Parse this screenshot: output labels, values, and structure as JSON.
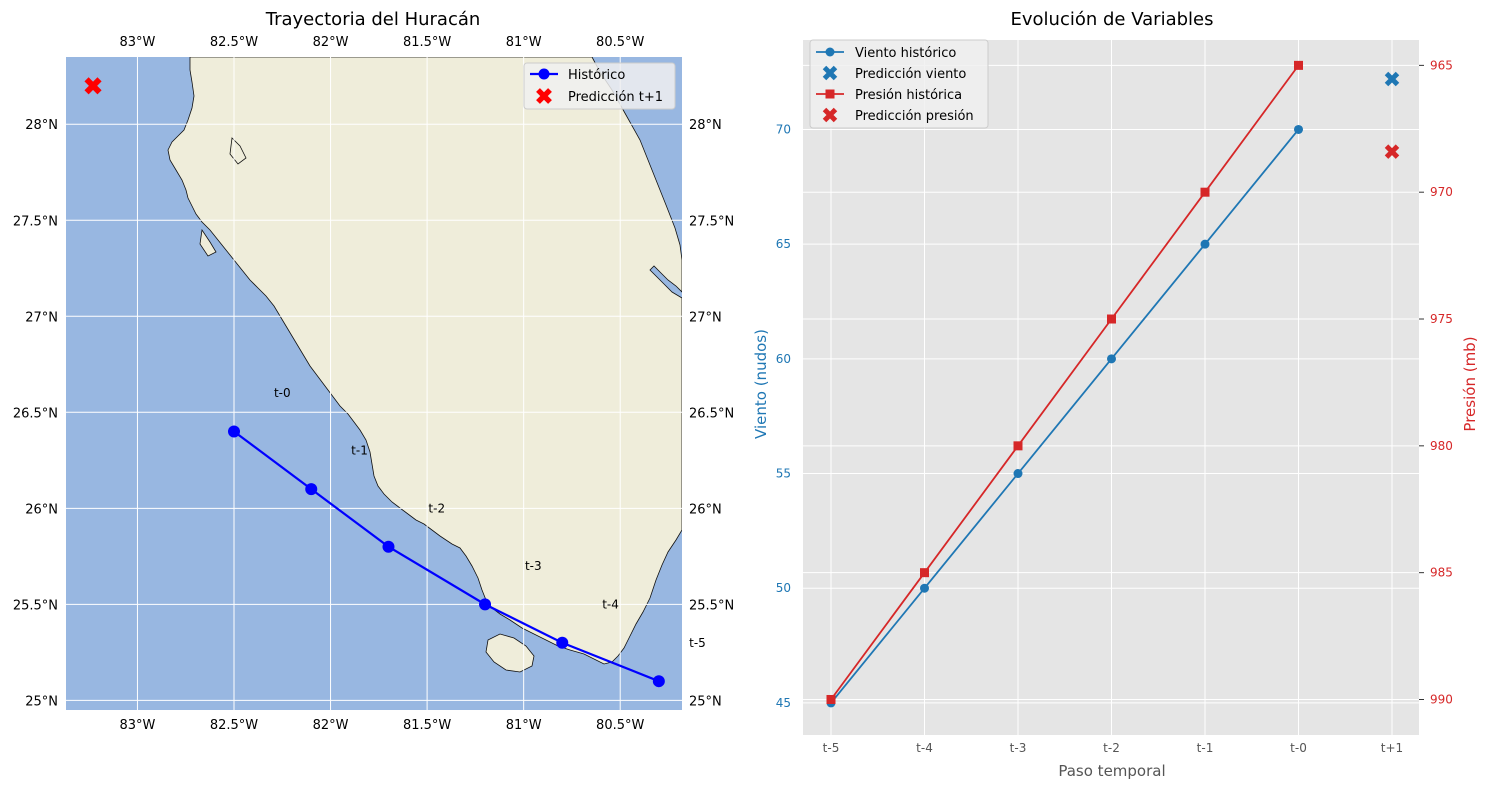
{
  "chart_data": [
    {
      "type": "scatter",
      "title": "Trayectoria del Huracán",
      "x_ticks": [
        "83°W",
        "82.5°W",
        "82°W",
        "81.5°W",
        "81°W",
        "80.5°W"
      ],
      "x_tick_values": [
        -83,
        -82.5,
        -82,
        -81.5,
        -81,
        -80.5
      ],
      "y_ticks": [
        "25°N",
        "25.5°N",
        "26°N",
        "26.5°N",
        "27°N",
        "27.5°N",
        "28°N"
      ],
      "y_tick_values": [
        25,
        25.5,
        26,
        26.5,
        27,
        27.5,
        28
      ],
      "xlim": [
        -83.37,
        -80.18
      ],
      "ylim": [
        24.95,
        28.35
      ],
      "colors": {
        "land": "#efedda",
        "ocean": "#98b7e1",
        "historic": "#0000ff",
        "prediction": "#ff0000"
      },
      "series": [
        {
          "name": "Histórico",
          "lon": [
            -82.5,
            -82.1,
            -81.7,
            -81.2,
            -80.8,
            -80.3
          ],
          "lat": [
            26.4,
            26.1,
            25.8,
            25.5,
            25.3,
            25.1
          ]
        },
        {
          "name": "Predicción t+1",
          "lon": [
            -83.23
          ],
          "lat": [
            28.2
          ]
        }
      ],
      "annotations": [
        {
          "text": "t-0",
          "lon": -82.25,
          "lat": 26.6
        },
        {
          "text": "t-1",
          "lon": -81.85,
          "lat": 26.3
        },
        {
          "text": "t-2",
          "lon": -81.45,
          "lat": 26.0
        },
        {
          "text": "t-3",
          "lon": -80.95,
          "lat": 25.7
        },
        {
          "text": "t-4",
          "lon": -80.55,
          "lat": 25.5
        },
        {
          "text": "t-5",
          "lon": -80.1,
          "lat": 25.3
        }
      ],
      "legend": "top-right"
    },
    {
      "type": "line",
      "title": "Evolución de Variables",
      "xlabel": "Paso temporal",
      "ylabel": "Viento (nudos)",
      "ylabel_right": "Presión (mb)",
      "categories": [
        "t-5",
        "t-4",
        "t-3",
        "t-2",
        "t-1",
        "t-0",
        "t+1"
      ],
      "ylim": [
        43.6,
        73.9
      ],
      "ylim_right": [
        991.4,
        964
      ],
      "y_ticks": [
        45,
        50,
        55,
        60,
        65,
        70
      ],
      "y_ticks_right": [
        965,
        970,
        975,
        980,
        985,
        990
      ],
      "colors": {
        "wind": "#1f77b4",
        "pressure": "#d62728"
      },
      "series": [
        {
          "name": "Viento histórico",
          "axis": "left",
          "x": [
            "t-5",
            "t-4",
            "t-3",
            "t-2",
            "t-1",
            "t-0"
          ],
          "values": [
            45,
            50,
            55,
            60,
            65,
            70
          ]
        },
        {
          "name": "Predicción viento",
          "axis": "left",
          "x": [
            "t+1"
          ],
          "values": [
            72.2
          ]
        },
        {
          "name": "Presión histórica",
          "axis": "right",
          "x": [
            "t-5",
            "t-4",
            "t-3",
            "t-2",
            "t-1",
            "t-0"
          ],
          "values": [
            990,
            985,
            980,
            975,
            970,
            965
          ]
        },
        {
          "name": "Predicción presión",
          "axis": "right",
          "x": [
            "t+1"
          ],
          "values": [
            968.4
          ]
        }
      ],
      "legend": "top-left"
    }
  ]
}
